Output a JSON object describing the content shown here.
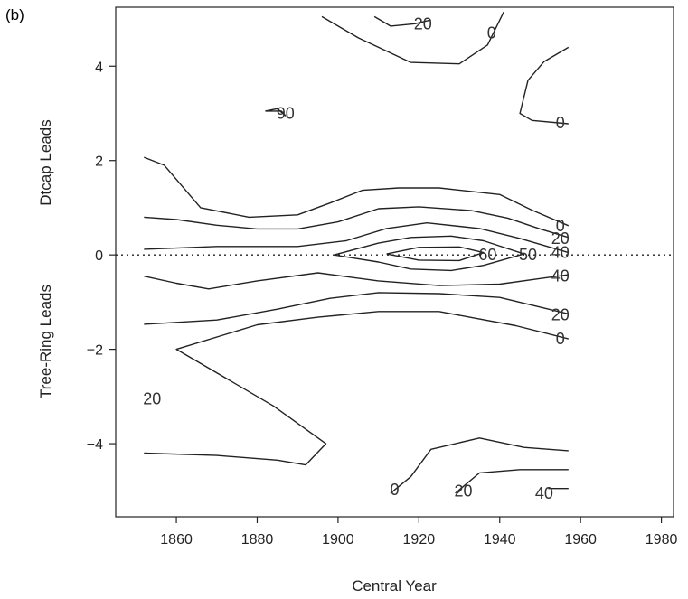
{
  "chart_data": {
    "type": "contour",
    "panel_label": "(b)",
    "title": "",
    "xlabel": "Central Year",
    "ylabel_upper": "Dtcap Leads",
    "ylabel_lower": "Tree-Ring Leads",
    "xlim": [
      1845,
      1983
    ],
    "ylim": [
      -5.55,
      5.25
    ],
    "x_ticks": [
      1860,
      1880,
      1900,
      1920,
      1940,
      1960,
      1980
    ],
    "y_ticks": [
      -4,
      -2,
      0,
      2,
      4
    ],
    "y_tick_labels": [
      "−4",
      "−2",
      "0",
      "2",
      "4"
    ],
    "reference_line": {
      "y": 0,
      "style": "dotted"
    },
    "contours": [
      {
        "points": [
          [
            1896,
            5.05
          ],
          [
            1905,
            4.6
          ],
          [
            1918,
            4.08
          ],
          [
            1930,
            4.05
          ],
          [
            1937,
            4.45
          ],
          [
            1941,
            5.15
          ]
        ]
      },
      {
        "points": [
          [
            1909,
            5.05
          ],
          [
            1913,
            4.85
          ],
          [
            1919,
            4.9
          ],
          [
            1923,
            4.98
          ]
        ]
      },
      {
        "points": [
          [
            1882,
            3.05
          ],
          [
            1885,
            3.1
          ],
          [
            1887,
            2.95
          ],
          [
            1886,
            3.05
          ],
          [
            1882,
            3.05
          ]
        ]
      },
      {
        "points": [
          [
            1957,
            4.4
          ],
          [
            1951,
            4.1
          ],
          [
            1947,
            3.7
          ],
          [
            1945,
            3.0
          ],
          [
            1948,
            2.85
          ],
          [
            1957,
            2.78
          ]
        ]
      },
      {
        "points": [
          [
            1852,
            2.07
          ],
          [
            1857,
            1.9
          ],
          [
            1866,
            1.0
          ],
          [
            1878,
            0.8
          ],
          [
            1890,
            0.85
          ],
          [
            1898,
            1.1
          ],
          [
            1906,
            1.37
          ],
          [
            1915,
            1.42
          ],
          [
            1925,
            1.42
          ],
          [
            1940,
            1.28
          ],
          [
            1948,
            0.95
          ],
          [
            1957,
            0.62
          ]
        ]
      },
      {
        "points": [
          [
            1852,
            0.8
          ],
          [
            1860,
            0.75
          ],
          [
            1870,
            0.63
          ],
          [
            1880,
            0.55
          ],
          [
            1890,
            0.55
          ],
          [
            1900,
            0.7
          ],
          [
            1910,
            0.98
          ],
          [
            1920,
            1.02
          ],
          [
            1933,
            0.94
          ],
          [
            1942,
            0.78
          ],
          [
            1950,
            0.55
          ],
          [
            1957,
            0.37
          ]
        ]
      },
      {
        "points": [
          [
            1852,
            0.12
          ],
          [
            1870,
            0.18
          ],
          [
            1890,
            0.18
          ],
          [
            1902,
            0.3
          ],
          [
            1912,
            0.56
          ],
          [
            1922,
            0.68
          ],
          [
            1935,
            0.56
          ],
          [
            1945,
            0.35
          ],
          [
            1957,
            0.05
          ]
        ]
      },
      {
        "points": [
          [
            1899,
            0.0
          ],
          [
            1910,
            0.25
          ],
          [
            1918,
            0.37
          ],
          [
            1928,
            0.4
          ],
          [
            1936,
            0.3
          ],
          [
            1946,
            0.02
          ],
          [
            1936,
            -0.22
          ],
          [
            1928,
            -0.33
          ],
          [
            1918,
            -0.3
          ],
          [
            1910,
            -0.15
          ],
          [
            1899,
            0.0
          ]
        ]
      },
      {
        "points": [
          [
            1912,
            0.02
          ],
          [
            1920,
            0.16
          ],
          [
            1930,
            0.17
          ],
          [
            1936,
            0.05
          ],
          [
            1930,
            -0.12
          ],
          [
            1920,
            -0.11
          ],
          [
            1912,
            0.02
          ]
        ]
      },
      {
        "points": [
          [
            1852,
            -0.45
          ],
          [
            1860,
            -0.6
          ],
          [
            1868,
            -0.72
          ],
          [
            1880,
            -0.55
          ],
          [
            1895,
            -0.38
          ],
          [
            1910,
            -0.55
          ],
          [
            1925,
            -0.65
          ],
          [
            1940,
            -0.62
          ],
          [
            1950,
            -0.5
          ],
          [
            1957,
            -0.42
          ]
        ]
      },
      {
        "points": [
          [
            1852,
            -1.47
          ],
          [
            1870,
            -1.38
          ],
          [
            1885,
            -1.15
          ],
          [
            1898,
            -0.92
          ],
          [
            1910,
            -0.8
          ],
          [
            1925,
            -0.82
          ],
          [
            1940,
            -0.9
          ],
          [
            1957,
            -1.25
          ]
        ]
      },
      {
        "points": [
          [
            1957,
            -1.78
          ],
          [
            1944,
            -1.5
          ],
          [
            1925,
            -1.2
          ],
          [
            1910,
            -1.2
          ],
          [
            1895,
            -1.32
          ],
          [
            1880,
            -1.48
          ],
          [
            1860,
            -2.0
          ],
          [
            1872,
            -2.6
          ],
          [
            1884,
            -3.2
          ],
          [
            1897,
            -4.0
          ],
          [
            1892,
            -4.45
          ],
          [
            1885,
            -4.35
          ],
          [
            1870,
            -4.25
          ],
          [
            1852,
            -4.2
          ]
        ]
      },
      {
        "points": [
          [
            1913,
            -5.05
          ],
          [
            1918,
            -4.7
          ],
          [
            1923,
            -4.12
          ],
          [
            1935,
            -3.88
          ],
          [
            1946,
            -4.08
          ],
          [
            1957,
            -4.15
          ]
        ]
      },
      {
        "points": [
          [
            1929,
            -5.05
          ],
          [
            1935,
            -4.62
          ],
          [
            1945,
            -4.55
          ],
          [
            1957,
            -4.55
          ]
        ]
      },
      {
        "points": [
          [
            1952,
            -4.95
          ],
          [
            1957,
            -4.95
          ]
        ]
      }
    ],
    "contour_labels": [
      {
        "text": "20",
        "x": 1921,
        "y": 4.9
      },
      {
        "text": "0",
        "x": 1938,
        "y": 4.7
      },
      {
        "text": "90",
        "x": 1887,
        "y": 3.0
      },
      {
        "text": "0",
        "x": 1955,
        "y": 2.8
      },
      {
        "text": "0",
        "x": 1955,
        "y": 0.62
      },
      {
        "text": "20",
        "x": 1955,
        "y": 0.35
      },
      {
        "text": "40",
        "x": 1955,
        "y": 0.05
      },
      {
        "text": "60",
        "x": 1937,
        "y": 0.0
      },
      {
        "text": "50",
        "x": 1947,
        "y": 0.0
      },
      {
        "text": "40",
        "x": 1955,
        "y": -0.45
      },
      {
        "text": "20",
        "x": 1955,
        "y": -1.27
      },
      {
        "text": "0",
        "x": 1955,
        "y": -1.78
      },
      {
        "text": "20",
        "x": 1854,
        "y": -3.05
      },
      {
        "text": "0",
        "x": 1914,
        "y": -4.98
      },
      {
        "text": "20",
        "x": 1931,
        "y": -5.0
      },
      {
        "text": "40",
        "x": 1951,
        "y": -5.05
      }
    ]
  }
}
